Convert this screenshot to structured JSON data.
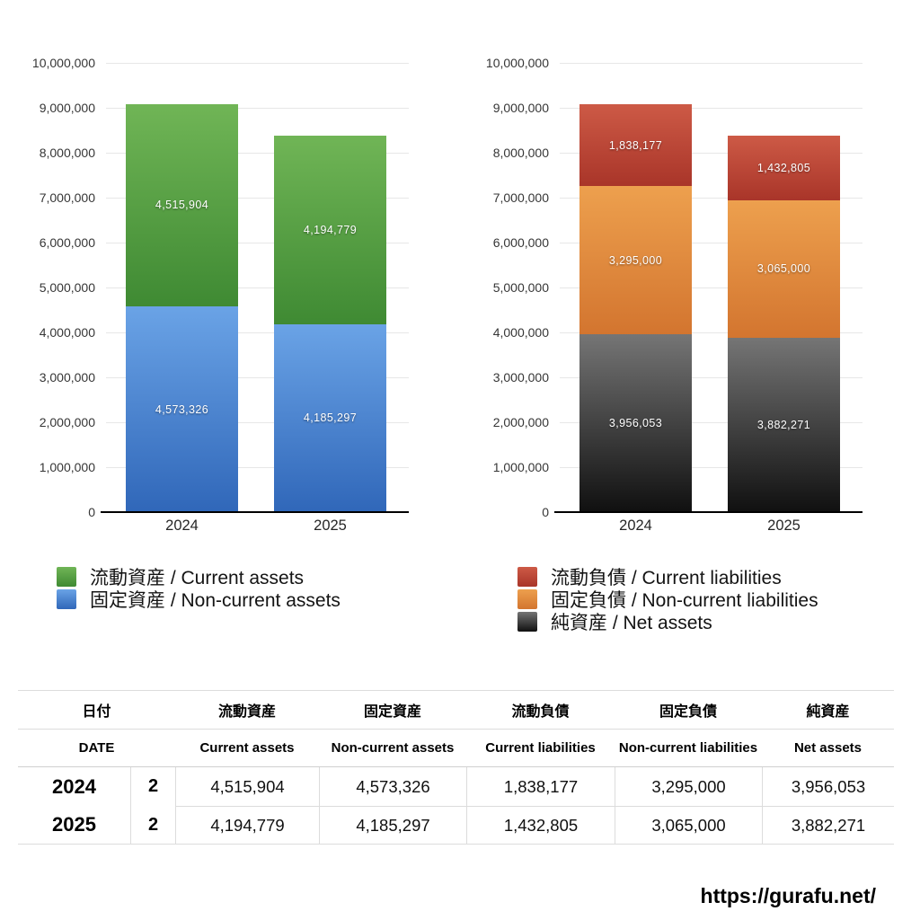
{
  "chart_data": [
    {
      "type": "bar",
      "stacked": true,
      "title": "",
      "categories": [
        "2024",
        "2025"
      ],
      "series": [
        {
          "name": "固定資産 / Non-current assets",
          "values": [
            4573326,
            4185297
          ],
          "color_top": "#6aa3e6",
          "color_bottom": "#3067b9"
        },
        {
          "name": "流動資産 / Current assets",
          "values": [
            4515904,
            4194779
          ],
          "color_top": "#70b556",
          "color_bottom": "#3f8a33"
        }
      ],
      "ylim": [
        0,
        10000000
      ],
      "ytick_step": 1000000,
      "grid": true,
      "value_labels": true,
      "legend_position": "bottom-left",
      "legend_order": [
        "流動資産 / Current assets",
        "固定資産 / Non-current assets"
      ]
    },
    {
      "type": "bar",
      "stacked": true,
      "title": "",
      "categories": [
        "2024",
        "2025"
      ],
      "series": [
        {
          "name": "純資産 / Net assets",
          "values": [
            3956053,
            3882271
          ],
          "color_top": "#757575",
          "color_bottom": "#101010"
        },
        {
          "name": "固定負債 / Non-current liabilities",
          "values": [
            3295000,
            3065000
          ],
          "color_top": "#eda04e",
          "color_bottom": "#d3752f"
        },
        {
          "name": "流動負債 / Current liabilities",
          "values": [
            1838177,
            1432805
          ],
          "color_top": "#cd5a46",
          "color_bottom": "#a93529"
        }
      ],
      "ylim": [
        0,
        10000000
      ],
      "ytick_step": 1000000,
      "grid": true,
      "value_labels": true,
      "legend_position": "bottom-left",
      "legend_order": [
        "流動負債 / Current liabilities",
        "固定負債 / Non-current liabilities",
        "純資産 / Net assets"
      ]
    }
  ],
  "table": {
    "header_jp": [
      "日付",
      "流動資産",
      "固定資産",
      "流動負債",
      "固定負債",
      "純資産"
    ],
    "header_en": [
      "DATE",
      "Current assets",
      "Non-current assets",
      "Current liabilities",
      "Non-current liabilities",
      "Net assets"
    ],
    "rows": [
      {
        "year": "2024",
        "month": "2",
        "values": [
          "4,515,904",
          "4,573,326",
          "1,838,177",
          "3,295,000",
          "3,956,053"
        ]
      },
      {
        "year": "2025",
        "month": "2",
        "values": [
          "4,194,779",
          "4,185,297",
          "1,432,805",
          "3,065,000",
          "3,882,271"
        ]
      }
    ]
  },
  "footer": {
    "url": "https://gurafu.net/"
  }
}
